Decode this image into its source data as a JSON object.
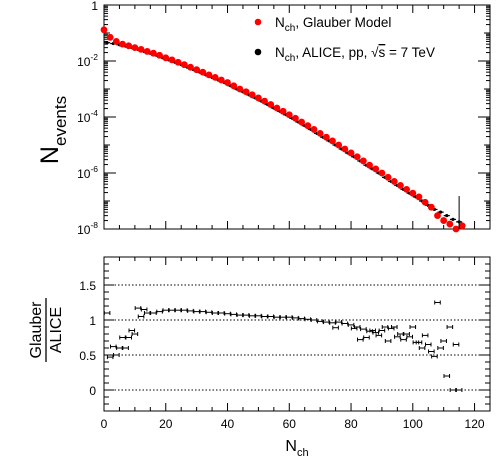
{
  "chart_data": [
    {
      "type": "scatter",
      "panel": "top",
      "ylabel": {
        "main": "N",
        "sub": "events"
      },
      "yscale": "log",
      "ylim": [
        1e-08,
        1
      ],
      "xlim": [
        0,
        125
      ],
      "y_tick_labels": [
        {
          "base": "1",
          "exp": ""
        },
        {
          "base": "10",
          "exp": "-2"
        },
        {
          "base": "10",
          "exp": "-4"
        },
        {
          "base": "10",
          "exp": "-6"
        },
        {
          "base": "10",
          "exp": "-8"
        }
      ],
      "legend": {
        "placement": "top-right",
        "entries": [
          {
            "marker_color": "#ff0000",
            "main": "N",
            "sub": "ch",
            "rest": ", Glauber Model"
          },
          {
            "marker_color": "#000000",
            "main": "N",
            "sub": "ch",
            "rest": ", ALICE, pp, ",
            "sqrt_arg": "s",
            "tail": " = 7 TeV"
          }
        ]
      },
      "series": [
        {
          "name": "N_ch, Glauber Model",
          "color": "#ff0000",
          "points": [
            [
              0,
              0.13
            ],
            [
              2,
              0.07
            ],
            [
              4,
              0.05
            ],
            [
              6,
              0.04
            ],
            [
              8,
              0.035
            ],
            [
              10,
              0.03
            ],
            [
              12,
              0.026
            ],
            [
              14,
              0.022
            ],
            [
              16,
              0.019
            ],
            [
              18,
              0.016
            ],
            [
              20,
              0.013
            ],
            [
              22,
              0.011
            ],
            [
              24,
              0.009
            ],
            [
              26,
              0.0074
            ],
            [
              28,
              0.006
            ],
            [
              30,
              0.0049
            ],
            [
              32,
              0.004
            ],
            [
              34,
              0.0032
            ],
            [
              36,
              0.0026
            ],
            [
              38,
              0.0021
            ],
            [
              40,
              0.0017
            ],
            [
              42,
              0.0013
            ],
            [
              44,
              0.001
            ],
            [
              46,
              0.0008
            ],
            [
              48,
              0.00062
            ],
            [
              50,
              0.00048
            ],
            [
              52,
              0.00037
            ],
            [
              54,
              0.00028
            ],
            [
              56,
              0.00021
            ],
            [
              58,
              0.00016
            ],
            [
              60,
              0.00012
            ],
            [
              62,
              9e-05
            ],
            [
              64,
              6.6e-05
            ],
            [
              66,
              4.9e-05
            ],
            [
              68,
              3.6e-05
            ],
            [
              70,
              2.6e-05
            ],
            [
              72,
              1.9e-05
            ],
            [
              74,
              1.4e-05
            ],
            [
              76,
              1e-05
            ],
            [
              78,
              7.2e-06
            ],
            [
              80,
              5.2e-06
            ],
            [
              82,
              3.8e-06
            ],
            [
              84,
              2.7e-06
            ],
            [
              86,
              1.9e-06
            ],
            [
              88,
              1.4e-06
            ],
            [
              90,
              1e-06
            ],
            [
              92,
              7e-07
            ],
            [
              94,
              5e-07
            ],
            [
              96,
              3.6e-07
            ],
            [
              98,
              2.6e-07
            ],
            [
              100,
              1.9e-07
            ],
            [
              102,
              1.4e-07
            ],
            [
              104,
              9e-08
            ],
            [
              106,
              6e-08
            ],
            [
              108,
              3e-08
            ],
            [
              110,
              2e-08
            ],
            [
              112,
              1.5e-08
            ],
            [
              114,
              1e-08
            ],
            [
              116,
              1.3e-08
            ]
          ]
        },
        {
          "name": "N_ch, ALICE, pp, √s = 7 TeV",
          "color": "#000000",
          "points": [
            [
              1,
              0.045
            ],
            [
              3,
              0.042
            ],
            [
              5,
              0.038
            ],
            [
              7,
              0.034
            ],
            [
              9,
              0.03
            ],
            [
              11,
              0.026
            ],
            [
              13,
              0.022
            ],
            [
              15,
              0.019
            ],
            [
              17,
              0.016
            ],
            [
              19,
              0.013
            ],
            [
              21,
              0.011
            ],
            [
              23,
              0.009
            ],
            [
              25,
              0.0074
            ],
            [
              27,
              0.006
            ],
            [
              29,
              0.0049
            ],
            [
              31,
              0.004
            ],
            [
              33,
              0.0032
            ],
            [
              35,
              0.0026
            ],
            [
              37,
              0.0021
            ],
            [
              39,
              0.0017
            ],
            [
              41,
              0.0013
            ],
            [
              43,
              0.001
            ],
            [
              45,
              0.0008
            ],
            [
              47,
              0.00062
            ],
            [
              49,
              0.00048
            ],
            [
              51,
              0.00037
            ],
            [
              53,
              0.00028
            ],
            [
              55,
              0.00021
            ],
            [
              57,
              0.00016
            ],
            [
              59,
              0.00012
            ],
            [
              61,
              9e-05
            ],
            [
              63,
              6.6e-05
            ],
            [
              65,
              4.9e-05
            ],
            [
              67,
              3.6e-05
            ],
            [
              69,
              2.6e-05
            ],
            [
              71,
              1.9e-05
            ],
            [
              73,
              1.4e-05
            ],
            [
              75,
              1e-05
            ],
            [
              77,
              7.2e-06
            ],
            [
              79,
              5.2e-06
            ],
            [
              81,
              3.8e-06
            ],
            [
              83,
              2.7e-06
            ],
            [
              85,
              1.9e-06
            ],
            [
              87,
              1.4e-06
            ],
            [
              89,
              1e-06
            ],
            [
              91,
              7e-07
            ],
            [
              93,
              5e-07
            ],
            [
              95,
              3.6e-07
            ],
            [
              97,
              2.6e-07
            ],
            [
              99,
              1.9e-07
            ],
            [
              101,
              1.4e-07
            ],
            [
              103,
              1e-07
            ],
            [
              105,
              7e-08
            ],
            [
              107,
              5e-08
            ],
            [
              109,
              4e-08
            ],
            [
              111,
              3e-08
            ],
            [
              113,
              2.2e-08
            ],
            [
              115,
              1.8e-08
            ]
          ]
        }
      ]
    },
    {
      "type": "scatter",
      "panel": "bottom",
      "ylabel": {
        "numerator": "Glauber",
        "denominator": "ALICE"
      },
      "xlabel": {
        "main": "N",
        "sub": "ch"
      },
      "xlim": [
        0,
        125
      ],
      "ylim": [
        -0.3,
        1.9
      ],
      "x_tick_labels": [
        "0",
        "20",
        "40",
        "60",
        "80",
        "100",
        "120"
      ],
      "y_tick_labels": [
        "0",
        "0.5",
        "1",
        "1.5"
      ],
      "reference_lines": [
        0,
        0.5,
        1,
        1.5
      ],
      "series": [
        {
          "name": "Glauber / ALICE",
          "color": "#000000",
          "points": [
            [
              1,
              1.1
            ],
            [
              2,
              0.47
            ],
            [
              3,
              0.62
            ],
            [
              4,
              0.5
            ],
            [
              5,
              0.6
            ],
            [
              6,
              0.75
            ],
            [
              7,
              0.6
            ],
            [
              8,
              0.75
            ],
            [
              9,
              0.85
            ],
            [
              10,
              0.8
            ],
            [
              11,
              1.17
            ],
            [
              12,
              1.05
            ],
            [
              13,
              1.15
            ],
            [
              14,
              1.1
            ],
            [
              16,
              1.1
            ],
            [
              18,
              1.12
            ],
            [
              20,
              1.14
            ],
            [
              22,
              1.14
            ],
            [
              24,
              1.14
            ],
            [
              26,
              1.14
            ],
            [
              28,
              1.13
            ],
            [
              30,
              1.12
            ],
            [
              32,
              1.12
            ],
            [
              34,
              1.11
            ],
            [
              36,
              1.1
            ],
            [
              38,
              1.1
            ],
            [
              40,
              1.09
            ],
            [
              42,
              1.08
            ],
            [
              44,
              1.07
            ],
            [
              46,
              1.07
            ],
            [
              48,
              1.06
            ],
            [
              50,
              1.06
            ],
            [
              52,
              1.05
            ],
            [
              54,
              1.05
            ],
            [
              56,
              1.04
            ],
            [
              58,
              1.04
            ],
            [
              60,
              1.04
            ],
            [
              62,
              1.03
            ],
            [
              64,
              1.02
            ],
            [
              66,
              1.01
            ],
            [
              68,
              1
            ],
            [
              70,
              0.98
            ],
            [
              72,
              0.97
            ],
            [
              74,
              0.96
            ],
            [
              75,
              0.89
            ],
            [
              76,
              0.97
            ],
            [
              78,
              0.95
            ],
            [
              80,
              0.93
            ],
            [
              81,
              0.88
            ],
            [
              82,
              0.9
            ],
            [
              83,
              0.72
            ],
            [
              84,
              0.87
            ],
            [
              85,
              0.75
            ],
            [
              86,
              0.84
            ],
            [
              87,
              0.85
            ],
            [
              88,
              0.82
            ],
            [
              89,
              0.78
            ],
            [
              90,
              0.85
            ],
            [
              91,
              0.9
            ],
            [
              92,
              0.7
            ],
            [
              93,
              0.88
            ],
            [
              94,
              0.9
            ],
            [
              95,
              0.76
            ],
            [
              96,
              0.8
            ],
            [
              97,
              0.72
            ],
            [
              98,
              0.8
            ],
            [
              99,
              0.76
            ],
            [
              100,
              0.9
            ],
            [
              101,
              0.68
            ],
            [
              102,
              0.68
            ],
            [
              103,
              0.6
            ],
            [
              104,
              0.78
            ],
            [
              105,
              0.65
            ],
            [
              106,
              0.55
            ],
            [
              107,
              0.48
            ],
            [
              108,
              1.25
            ],
            [
              109,
              0.6
            ],
            [
              110,
              0.7
            ],
            [
              111,
              0.2
            ],
            [
              112,
              0.9
            ],
            [
              113,
              0
            ],
            [
              114,
              0.65
            ],
            [
              115,
              0
            ]
          ]
        }
      ]
    }
  ]
}
